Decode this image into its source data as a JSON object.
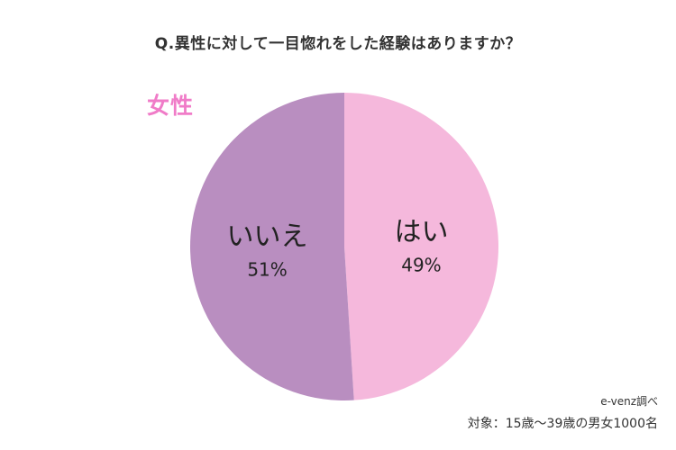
{
  "title": "Q.異性に対して一目惚れをした経験はありますか？",
  "chart_data": {
    "type": "pie",
    "group": "女性",
    "slices": [
      {
        "label": "はい",
        "value": 49,
        "display": "49%",
        "color": "#f5b8dc"
      },
      {
        "label": "いいえ",
        "value": 51,
        "display": "51%",
        "color": "#b98ec0"
      }
    ]
  },
  "colors": {
    "group_label": "#f07cc8"
  },
  "source": "e-venz調べ",
  "note": "対象：15歳〜39歳の男女1000名"
}
